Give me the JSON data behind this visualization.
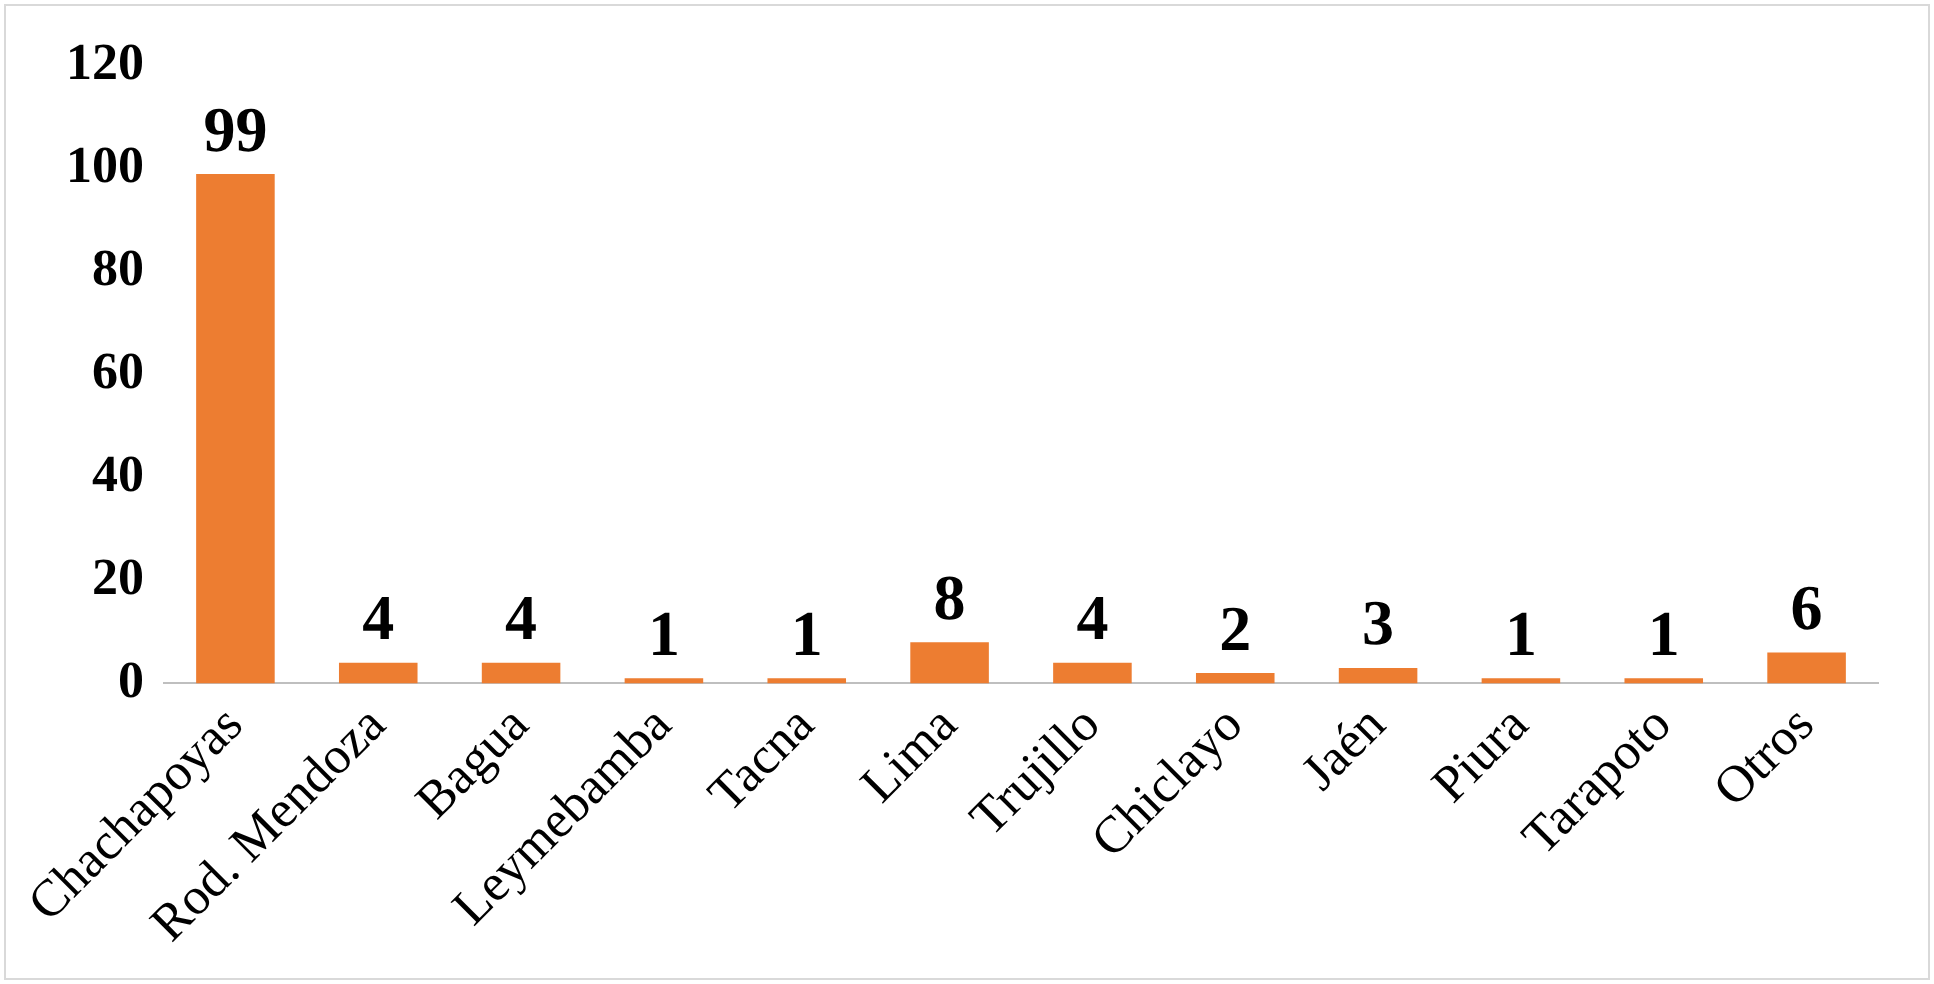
{
  "chart_data": {
    "type": "bar",
    "categories": [
      "Chachapoyas",
      "Rod. Mendoza",
      "Bagua",
      "Leymebamba",
      "Tacna",
      "Lima",
      "Trujillo",
      "Chiclayo",
      "Jaén",
      "Piura",
      "Tarapoto",
      "Otros"
    ],
    "values": [
      99,
      4,
      4,
      1,
      1,
      8,
      4,
      2,
      3,
      1,
      1,
      6
    ],
    "color": "#ed7d31",
    "ylim": [
      0,
      120
    ],
    "yticks": [
      0,
      20,
      40,
      60,
      80,
      100,
      120
    ],
    "grid": false,
    "legend": false,
    "data_labels": true
  }
}
